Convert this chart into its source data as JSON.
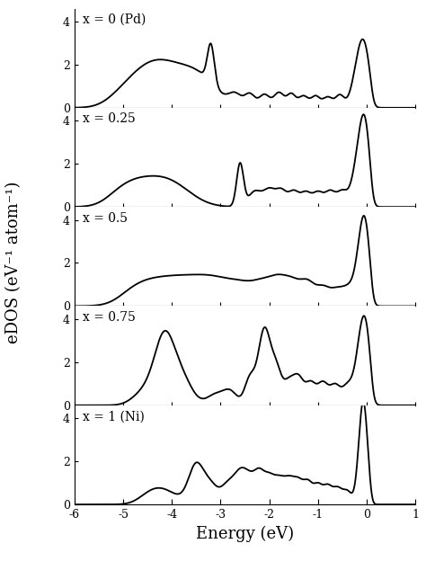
{
  "panels": [
    {
      "label": "x = 0 (Pd)"
    },
    {
      "label": "x = 0.25"
    },
    {
      "label": "x = 0.5"
    },
    {
      "label": "x = 0.75"
    },
    {
      "label": "x = 1 (Ni)"
    }
  ],
  "xlim": [
    -6,
    1
  ],
  "ylim": [
    0,
    4.6
  ],
  "yticks": [
    0,
    2,
    4
  ],
  "xticks": [
    -6,
    -5,
    -4,
    -3,
    -2,
    -1,
    0,
    1
  ],
  "xlabel": "Energy (eV)",
  "ylabel": "eDOS (eV⁻¹ atom⁻¹)",
  "linecolor": "black",
  "linewidth": 1.3,
  "bg_color": "white",
  "label_fontsize": 10,
  "tick_fontsize": 9,
  "axis_label_fontsize": 13
}
